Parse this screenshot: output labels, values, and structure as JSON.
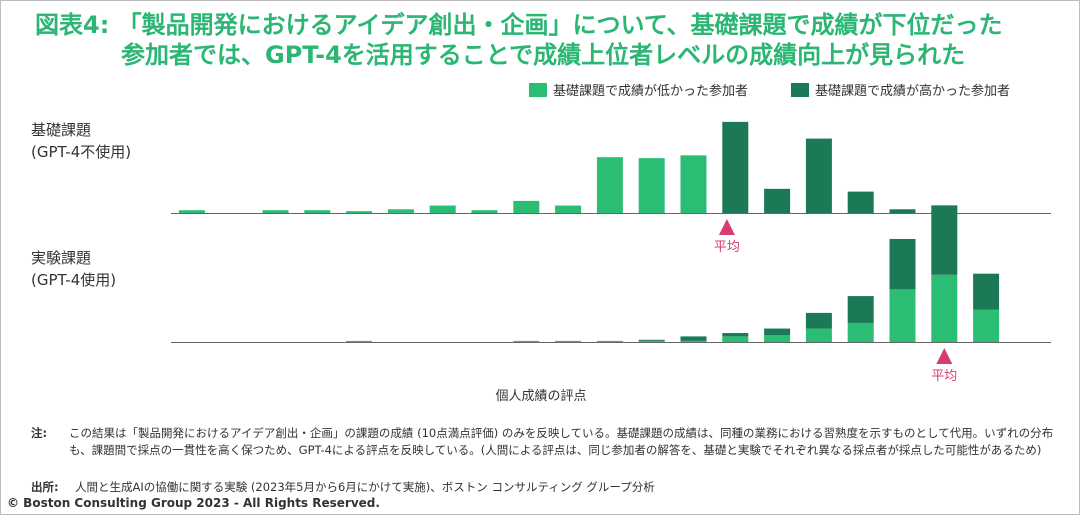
{
  "title": {
    "line1": "図表4: 「製品開発におけるアイデア創出・企画」について、基礎課題で成績が下位だった",
    "line2": "参加者では、GPT-4を活用することで成績上位者レベルの成績向上が見られた"
  },
  "legend": {
    "low": "基礎課題で成績が低かった参加者",
    "high": "基礎課題で成績が高かった参加者"
  },
  "colors": {
    "low": "#2bbd73",
    "high": "#1b7a55",
    "avg": "#d63c6d",
    "title": "#2bb673"
  },
  "panels": [
    {
      "line1": "基礎課題",
      "line2": "(GPT-4不使用)"
    },
    {
      "line1": "実験課題",
      "line2": "(GPT-4使用)"
    }
  ],
  "avg_label": "平均",
  "xlabel": "個人成績の評点",
  "note": {
    "key": "注:",
    "text": "この結果は「製品開発におけるアイデア創出・企画」の課題の成績 (10点満点評価) のみを反映している。基礎課題の成績は、同種の業務における習熟度を示すものとして代用。いずれの分布も、課題間で採点の一貫性を高く保つため、GPT-4による評点を反映している。(人間による評点は、同じ参加者の解答を、基礎と実験でそれぞれ異なる採点者が採点した可能性があるため)"
  },
  "source": {
    "key": "出所:",
    "text": "人間と生成AIの協働に関する実験 (2023年5月から6月にかけて実施)、ボストン コンサルティング グループ分析"
  },
  "copyright": "© Boston Consulting Group 2023 - All Rights Reserved.",
  "chart_data": [
    {
      "type": "bar",
      "title": "基礎課題 (GPT-4不使用)",
      "series": [
        {
          "name": "基礎課題で成績が低かった参加者",
          "values": [
            0.3,
            0,
            0.3,
            0.3,
            0.2,
            0.4,
            0.8,
            0.3,
            1.3,
            0.8,
            6.0,
            5.9,
            6.2,
            0,
            0,
            0,
            0,
            0,
            0,
            0
          ]
        },
        {
          "name": "基礎課題で成績が高かった参加者",
          "values": [
            0,
            0,
            0,
            0,
            0,
            0,
            0,
            0,
            0,
            0,
            0,
            0,
            0,
            9.8,
            2.6,
            8.0,
            2.3,
            0.4,
            0.2,
            0
          ]
        }
      ],
      "average_bin": 12.8
    },
    {
      "type": "bar",
      "title": "実験課題 (GPT-4使用)",
      "stacked": true,
      "series": [
        {
          "name": "基礎課題で成績が低かった参加者",
          "values": [
            0,
            0,
            0,
            0,
            0.1,
            0,
            0,
            0,
            0.1,
            0.1,
            0.1,
            0.1,
            0.1,
            0.5,
            0.6,
            1.2,
            1.7,
            4.7,
            6.0,
            2.9
          ]
        },
        {
          "name": "基礎課題で成績が高かった参加者",
          "values": [
            0,
            0,
            0,
            0,
            0,
            0,
            0,
            0,
            0,
            0,
            0,
            0.1,
            0.4,
            0.3,
            0.6,
            1.4,
            2.4,
            4.5,
            6.2,
            3.2
          ]
        }
      ],
      "average_bin": 18.0
    }
  ]
}
